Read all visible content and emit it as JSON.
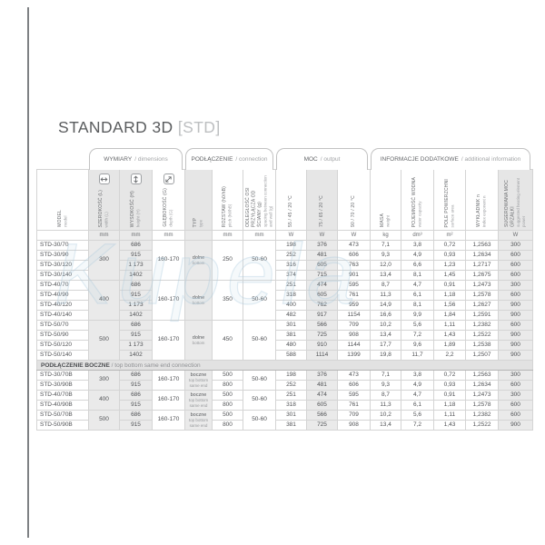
{
  "title": {
    "main": "STANDARD 3D",
    "code": "[STD]"
  },
  "watermark": "Kupela",
  "tabs": [
    {
      "pl": "WYMIARY",
      "en": "/ dimensions"
    },
    {
      "pl": "PODŁĄCZENIE",
      "en": "/ connection"
    },
    {
      "pl": "MOC",
      "en": "/ output"
    },
    {
      "pl": "INFORMACJE DODATKOWE",
      "en": "/ additional information"
    }
  ],
  "columns": [
    {
      "key": "model",
      "pl": "MODEL",
      "en": "model",
      "unit": ""
    },
    {
      "key": "width",
      "pl": "SZEROKOŚĆ (L)",
      "en": "width (L)",
      "unit": "mm",
      "icon": "width-arrow-icon"
    },
    {
      "key": "height",
      "pl": "WYSOKOŚĆ (H)",
      "en": "height (H)",
      "unit": "mm",
      "icon": "height-arrow-icon"
    },
    {
      "key": "depth",
      "pl": "GŁĘBOKOŚĆ (G)",
      "en": "depth (G)",
      "unit": "mm",
      "icon": "depth-arrow-icon"
    },
    {
      "key": "type",
      "pl": "TYP",
      "en": "type",
      "unit": ""
    },
    {
      "key": "pitch",
      "pl": "ROZSTAW (h0/hB)",
      "en": "pitch (h0/hB)",
      "unit": "mm"
    },
    {
      "key": "spacing",
      "pl": "ODLEGŁOŚĆ OSI PRZYŁĄCZA OD ŚCIANY (g)",
      "en": "spacing between connection and wall (g)",
      "unit": "mm"
    },
    {
      "key": "output-55-45-20",
      "pl": "55 / 45 / 20 °C",
      "en": "",
      "unit": "W"
    },
    {
      "key": "output-75-65-20",
      "pl": "75 / 65 / 20 °C",
      "en": "",
      "unit": "W"
    },
    {
      "key": "output-90-70-20",
      "pl": "90 / 70 / 20 °C",
      "en": "",
      "unit": "W"
    },
    {
      "key": "weight",
      "pl": "MASA",
      "en": "weight",
      "unit": "kg"
    },
    {
      "key": "water-capacity",
      "pl": "POJEMNOŚĆ WODNA",
      "en": "water capacity",
      "unit": "dm³"
    },
    {
      "key": "surface-area",
      "pl": "POLE POWIERZCHNI",
      "en": "surface area",
      "unit": "m²"
    },
    {
      "key": "exponent",
      "pl": "WYKŁADNIK n",
      "en": "index exponent n",
      "unit": ""
    },
    {
      "key": "heater-power",
      "pl": "SUGEROWANA MOC GRZAŁKI",
      "en": "suggested heating element power",
      "unit": "W"
    }
  ],
  "sections": [
    {
      "header": null,
      "groups": [
        {
          "width": "300",
          "depth": "160-170",
          "type_pl": "dolne",
          "type_en": "bottom",
          "pitch": "250",
          "spacing": "50-60",
          "rows": [
            {
              "model": "STD-30/70",
              "height": "686",
              "w55": "198",
              "w75": "376",
              "w90": "473",
              "mass": "7,1",
              "capacity": "3,8",
              "area": "0,72",
              "exponent": "1,2563",
              "heater": "300"
            },
            {
              "model": "STD-30/90",
              "height": "915",
              "w55": "252",
              "w75": "481",
              "w90": "606",
              "mass": "9,3",
              "capacity": "4,9",
              "area": "0,93",
              "exponent": "1,2634",
              "heater": "600"
            },
            {
              "model": "STD-30/120",
              "height": "1 173",
              "w55": "316",
              "w75": "605",
              "w90": "763",
              "mass": "12,0",
              "capacity": "6,6",
              "area": "1,23",
              "exponent": "1,2717",
              "heater": "600"
            },
            {
              "model": "STD-30/140",
              "height": "1402",
              "w55": "374",
              "w75": "715",
              "w90": "901",
              "mass": "13,4",
              "capacity": "8,1",
              "area": "1,45",
              "exponent": "1,2675",
              "heater": "600"
            }
          ]
        },
        {
          "width": "400",
          "depth": "160-170",
          "type_pl": "dolne",
          "type_en": "bottom",
          "pitch": "350",
          "spacing": "50-60",
          "rows": [
            {
              "model": "STD-40/70",
              "height": "686",
              "w55": "251",
              "w55b": "",
              "w75": "474",
              "w90": "595",
              "mass": "8,7",
              "capacity": "4,7",
              "area": "0,91",
              "exponent": "1,2473",
              "heater": "300"
            },
            {
              "model": "STD-40/90",
              "height": "915",
              "w55": "318",
              "w75": "605",
              "w90": "761",
              "mass": "11,3",
              "capacity": "6,1",
              "area": "1,18",
              "exponent": "1,2578",
              "heater": "600"
            },
            {
              "model": "STD-40/120",
              "height": "1 173",
              "w55": "400",
              "w75": "762",
              "w90": "959",
              "mass": "14,9",
              "capacity": "8,1",
              "area": "1,56",
              "exponent": "1,2627",
              "heater": "900"
            },
            {
              "model": "STD-40/140",
              "height": "1402",
              "w55": "482",
              "w75": "917",
              "w90": "1154",
              "mass": "16,6",
              "capacity": "9,9",
              "area": "1,84",
              "exponent": "1,2591",
              "heater": "900"
            }
          ]
        },
        {
          "width": "500",
          "depth": "160-170",
          "type_pl": "dolne",
          "type_en": "bottom",
          "pitch": "450",
          "spacing": "50-60",
          "rows": [
            {
              "model": "STD-50/70",
              "height": "686",
              "w55": "301",
              "w75": "566",
              "w90": "709",
              "mass": "10,2",
              "capacity": "5,6",
              "area": "1,11",
              "exponent": "1,2382",
              "heater": "600"
            },
            {
              "model": "STD-50/90",
              "height": "915",
              "w55": "381",
              "w75": "725",
              "w90": "908",
              "mass": "13,4",
              "capacity": "7,2",
              "area": "1,43",
              "exponent": "1,2522",
              "heater": "900"
            },
            {
              "model": "STD-50/120",
              "height": "1 173",
              "w55": "480",
              "w75": "910",
              "w90": "1144",
              "mass": "17,7",
              "capacity": "9,6",
              "area": "1,89",
              "exponent": "1,2538",
              "heater": "900"
            },
            {
              "model": "STD-50/140",
              "height": "1402",
              "w55": "588",
              "w75": "1114",
              "w90": "1399",
              "mass": "19,8",
              "capacity": "11,7",
              "area": "2,2",
              "exponent": "1,2507",
              "heater": "900"
            }
          ]
        }
      ]
    },
    {
      "header": {
        "pl": "PODŁĄCZENIE BOCZNE",
        "en": "/ top bottom same end connection"
      },
      "groups": [
        {
          "width": "300",
          "depth": "160-170",
          "type_pl": "boczne",
          "type_en": "top bottom same end",
          "spacing": "50-60",
          "rows": [
            {
              "model": "STD-30/70B",
              "height": "686",
              "pitch": "500",
              "w55": "198",
              "w75": "376",
              "w90": "473",
              "mass": "7,1",
              "capacity": "3,8",
              "area": "0,72",
              "exponent": "1,2563",
              "heater": "300"
            },
            {
              "model": "STD-30/90B",
              "height": "915",
              "pitch": "800",
              "w55": "252",
              "w75": "481",
              "w90": "606",
              "mass": "9,3",
              "capacity": "4,9",
              "area": "0,93",
              "exponent": "1,2634",
              "heater": "600"
            }
          ]
        },
        {
          "width": "400",
          "depth": "160-170",
          "type_pl": "boczne",
          "type_en": "top bottom same end",
          "spacing": "50-60",
          "rows": [
            {
              "model": "STD-40/70B",
              "height": "686",
              "pitch": "500",
              "w55": "251",
              "w75": "474",
              "w90": "595",
              "mass": "8,7",
              "capacity": "4,7",
              "area": "0,91",
              "exponent": "1,2473",
              "heater": "300"
            },
            {
              "model": "STD-40/90B",
              "height": "915",
              "pitch": "800",
              "w55": "318",
              "w75": "605",
              "w90": "761",
              "mass": "11,3",
              "capacity": "6,1",
              "area": "1,18",
              "exponent": "1,2578",
              "heater": "600"
            }
          ]
        },
        {
          "width": "500",
          "depth": "160-170",
          "type_pl": "boczne",
          "type_en": "top bottom same end",
          "spacing": "50-60",
          "rows": [
            {
              "model": "STD-50/70B",
              "height": "686",
              "pitch": "500",
              "w55": "301",
              "w75": "566",
              "w90": "709",
              "mass": "10,2",
              "capacity": "5,6",
              "area": "1,11",
              "exponent": "1,2382",
              "heater": "600"
            },
            {
              "model": "STD-50/90B",
              "height": "915",
              "pitch": "800",
              "w55": "381",
              "w75": "725",
              "w90": "908",
              "mass": "13,4",
              "capacity": "7,2",
              "area": "1,43",
              "exponent": "1,2522",
              "heater": "900"
            }
          ]
        }
      ]
    }
  ]
}
